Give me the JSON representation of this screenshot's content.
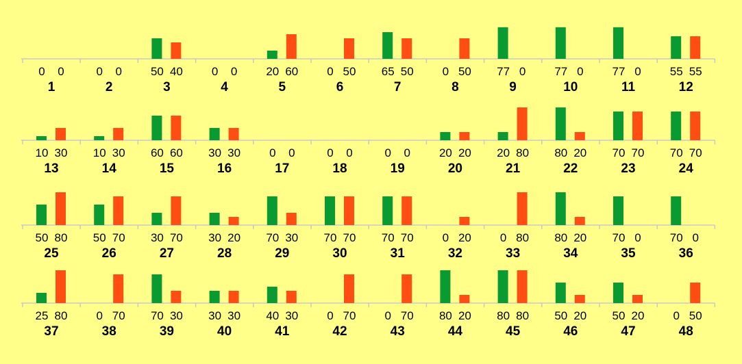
{
  "chart_data": {
    "type": "bar",
    "layout": "small-multiples grid, 4 rows x 12 columns",
    "colors": {
      "background": "#ffff8a",
      "series_1": "#0a9a32",
      "series_2": "#ff4e14",
      "axis": "#c8c8c8"
    },
    "grid": false,
    "legend": "none",
    "ylim": [
      0,
      80
    ],
    "items": [
      {
        "id": "1",
        "labels": [
          "0",
          "0"
        ],
        "values": [
          0,
          0
        ]
      },
      {
        "id": "2",
        "labels": [
          "0",
          "0"
        ],
        "values": [
          0,
          0
        ]
      },
      {
        "id": "3",
        "labels": [
          "50",
          "40"
        ],
        "values": [
          50,
          40
        ]
      },
      {
        "id": "4",
        "labels": [
          "0",
          "0"
        ],
        "values": [
          0,
          0
        ]
      },
      {
        "id": "5",
        "labels": [
          "20",
          "60"
        ],
        "values": [
          20,
          60
        ]
      },
      {
        "id": "6",
        "labels": [
          "0",
          "50"
        ],
        "values": [
          0,
          50
        ]
      },
      {
        "id": "7",
        "labels": [
          "65",
          "50"
        ],
        "values": [
          65,
          50
        ]
      },
      {
        "id": "8",
        "labels": [
          "0",
          "50"
        ],
        "values": [
          0,
          50
        ]
      },
      {
        "id": "9",
        "labels": [
          "77",
          "0"
        ],
        "values": [
          77,
          0
        ]
      },
      {
        "id": "10",
        "labels": [
          "77",
          "0"
        ],
        "values": [
          77,
          0
        ]
      },
      {
        "id": "11",
        "labels": [
          "77",
          "0"
        ],
        "values": [
          77,
          0
        ]
      },
      {
        "id": "12",
        "labels": [
          "55",
          "55"
        ],
        "values": [
          55,
          55
        ]
      },
      {
        "id": "13",
        "labels": [
          "10",
          "30"
        ],
        "values": [
          10,
          30
        ]
      },
      {
        "id": "14",
        "labels": [
          "10",
          "30"
        ],
        "values": [
          10,
          30
        ]
      },
      {
        "id": "15",
        "labels": [
          "60",
          "60"
        ],
        "values": [
          60,
          60
        ]
      },
      {
        "id": "16",
        "labels": [
          "30",
          "30"
        ],
        "values": [
          30,
          30
        ]
      },
      {
        "id": "17",
        "labels": [
          "0",
          "0"
        ],
        "values": [
          0,
          0
        ]
      },
      {
        "id": "18",
        "labels": [
          "0",
          "0"
        ],
        "values": [
          0,
          0
        ]
      },
      {
        "id": "19",
        "labels": [
          "0",
          "0"
        ],
        "values": [
          0,
          0
        ]
      },
      {
        "id": "20",
        "labels": [
          "20",
          "20"
        ],
        "values": [
          20,
          20
        ]
      },
      {
        "id": "21",
        "labels": [
          "20",
          "80"
        ],
        "values": [
          20,
          80
        ]
      },
      {
        "id": "22",
        "labels": [
          "80",
          "20"
        ],
        "values": [
          80,
          20
        ]
      },
      {
        "id": "23",
        "labels": [
          "70",
          "70"
        ],
        "values": [
          70,
          70
        ]
      },
      {
        "id": "24",
        "labels": [
          "70",
          "70"
        ],
        "values": [
          70,
          70
        ]
      },
      {
        "id": "25",
        "labels": [
          "50",
          "80"
        ],
        "values": [
          50,
          80
        ]
      },
      {
        "id": "26",
        "labels": [
          "50",
          "70"
        ],
        "values": [
          50,
          70
        ]
      },
      {
        "id": "27",
        "labels": [
          "30",
          "70"
        ],
        "values": [
          30,
          70
        ]
      },
      {
        "id": "28",
        "labels": [
          "30",
          "20"
        ],
        "values": [
          30,
          20
        ]
      },
      {
        "id": "29",
        "labels": [
          "70",
          "30"
        ],
        "values": [
          70,
          30
        ]
      },
      {
        "id": "30",
        "labels": [
          "70",
          "70"
        ],
        "values": [
          70,
          70
        ]
      },
      {
        "id": "31",
        "labels": [
          "70",
          "70"
        ],
        "values": [
          70,
          70
        ]
      },
      {
        "id": "32",
        "labels": [
          "0",
          "20"
        ],
        "values": [
          0,
          20
        ]
      },
      {
        "id": "33",
        "labels": [
          "0",
          "80"
        ],
        "values": [
          0,
          80
        ]
      },
      {
        "id": "34",
        "labels": [
          "80",
          "20"
        ],
        "values": [
          80,
          20
        ]
      },
      {
        "id": "35",
        "labels": [
          "70",
          "0"
        ],
        "values": [
          70,
          0
        ]
      },
      {
        "id": "36",
        "labels": [
          "70",
          "0"
        ],
        "values": [
          70,
          0
        ]
      },
      {
        "id": "37",
        "labels": [
          "25",
          "80"
        ],
        "values": [
          25,
          80
        ]
      },
      {
        "id": "38",
        "labels": [
          "0",
          "70"
        ],
        "values": [
          0,
          70
        ]
      },
      {
        "id": "39",
        "labels": [
          "70",
          "30"
        ],
        "values": [
          70,
          30
        ]
      },
      {
        "id": "40",
        "labels": [
          "30",
          "30"
        ],
        "values": [
          30,
          30
        ]
      },
      {
        "id": "41",
        "labels": [
          "40",
          "30"
        ],
        "values": [
          40,
          30
        ]
      },
      {
        "id": "42",
        "labels": [
          "0",
          "70"
        ],
        "values": [
          0,
          70
        ]
      },
      {
        "id": "43",
        "labels": [
          "0",
          "70"
        ],
        "values": [
          0,
          70
        ]
      },
      {
        "id": "44",
        "labels": [
          "80",
          "20"
        ],
        "values": [
          80,
          20
        ]
      },
      {
        "id": "45",
        "labels": [
          "80",
          "80"
        ],
        "values": [
          80,
          80
        ]
      },
      {
        "id": "46",
        "labels": [
          "50",
          "20"
        ],
        "values": [
          50,
          20
        ]
      },
      {
        "id": "47",
        "labels": [
          "50",
          "20"
        ],
        "values": [
          50,
          20
        ]
      },
      {
        "id": "48",
        "labels": [
          "0",
          "50"
        ],
        "values": [
          0,
          50
        ]
      }
    ]
  }
}
